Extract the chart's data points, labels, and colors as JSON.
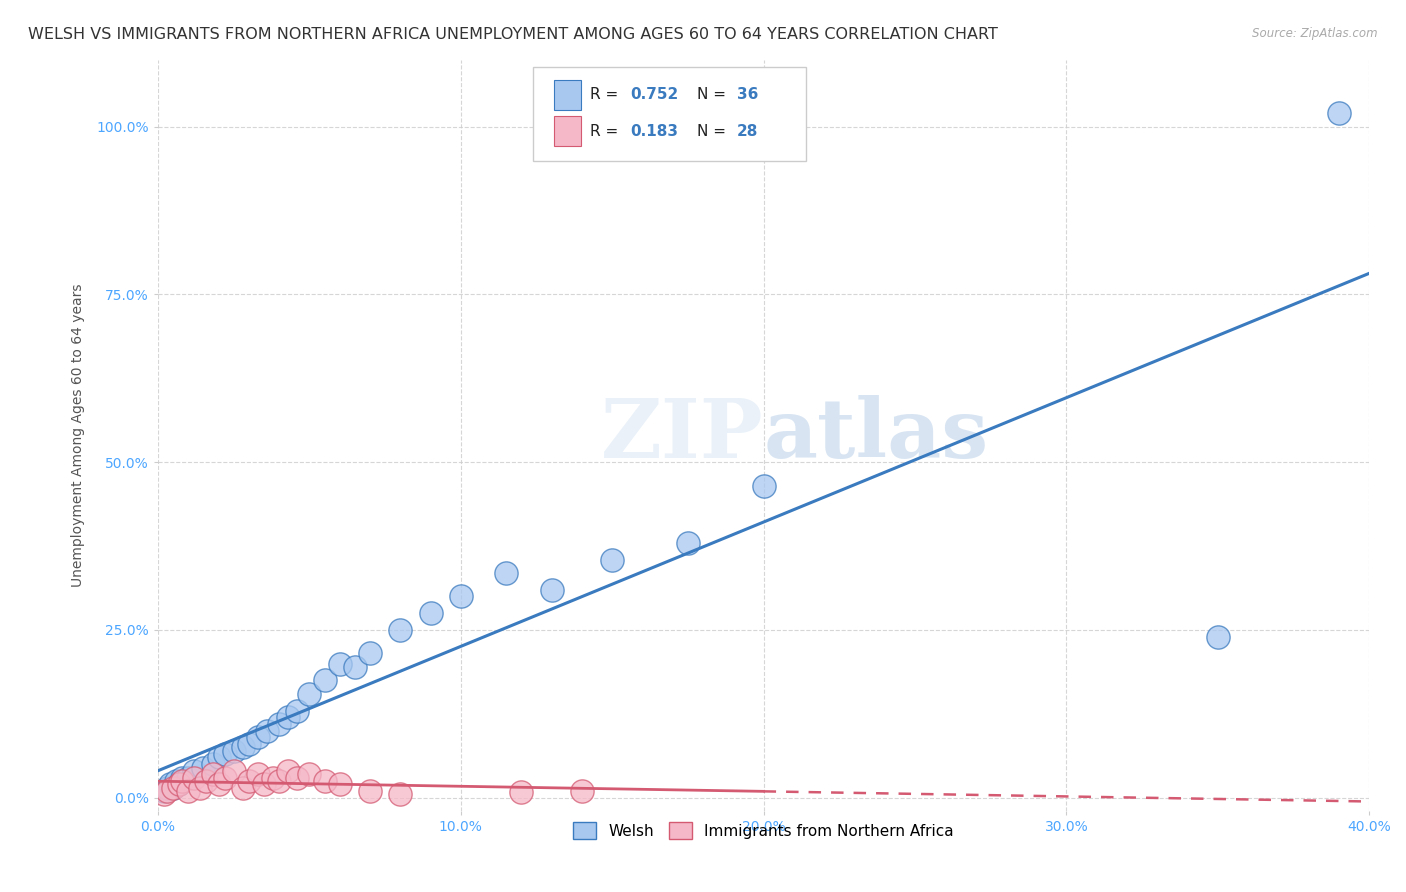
{
  "title": "WELSH VS IMMIGRANTS FROM NORTHERN AFRICA UNEMPLOYMENT AMONG AGES 60 TO 64 YEARS CORRELATION CHART",
  "source": "Source: ZipAtlas.com",
  "ylabel": "Unemployment Among Ages 60 to 64 years",
  "xlim": [
    0.0,
    0.4
  ],
  "ylim": [
    -0.02,
    1.1
  ],
  "xticks": [
    0.0,
    0.1,
    0.2,
    0.3,
    0.4
  ],
  "xtick_labels": [
    "0.0%",
    "10.0%",
    "20.0%",
    "30.0%",
    "40.0%"
  ],
  "yticks": [
    0.0,
    0.25,
    0.5,
    0.75,
    1.0
  ],
  "ytick_labels": [
    "0.0%",
    "25.0%",
    "50.0%",
    "75.0%",
    "100.0%"
  ],
  "welsh_R": 0.752,
  "welsh_N": 36,
  "immigrants_R": 0.183,
  "immigrants_N": 28,
  "welsh_color": "#a8c8f0",
  "welsh_line_color": "#3a7abf",
  "immigrants_color": "#f5b8c8",
  "immigrants_line_color": "#d45a72",
  "watermark_zip": "ZIP",
  "watermark_atlas": "atlas",
  "legend_labels": [
    "Welsh",
    "Immigrants from Northern Africa"
  ],
  "welsh_scatter_x": [
    0.002,
    0.003,
    0.004,
    0.005,
    0.006,
    0.007,
    0.008,
    0.01,
    0.012,
    0.015,
    0.018,
    0.02,
    0.022,
    0.025,
    0.028,
    0.03,
    0.033,
    0.036,
    0.04,
    0.043,
    0.046,
    0.05,
    0.055,
    0.06,
    0.065,
    0.07,
    0.08,
    0.09,
    0.1,
    0.115,
    0.13,
    0.15,
    0.175,
    0.2,
    0.35,
    0.39
  ],
  "welsh_scatter_y": [
    0.01,
    0.015,
    0.02,
    0.015,
    0.025,
    0.02,
    0.03,
    0.03,
    0.04,
    0.045,
    0.05,
    0.06,
    0.065,
    0.07,
    0.075,
    0.08,
    0.09,
    0.1,
    0.11,
    0.12,
    0.13,
    0.155,
    0.175,
    0.2,
    0.195,
    0.215,
    0.25,
    0.275,
    0.3,
    0.335,
    0.31,
    0.355,
    0.38,
    0.465,
    0.24,
    1.02
  ],
  "immigrants_scatter_x": [
    0.002,
    0.003,
    0.005,
    0.007,
    0.008,
    0.01,
    0.012,
    0.014,
    0.016,
    0.018,
    0.02,
    0.022,
    0.025,
    0.028,
    0.03,
    0.033,
    0.035,
    0.038,
    0.04,
    0.043,
    0.046,
    0.05,
    0.055,
    0.06,
    0.07,
    0.08,
    0.12,
    0.14
  ],
  "immigrants_scatter_y": [
    0.005,
    0.01,
    0.015,
    0.02,
    0.025,
    0.01,
    0.03,
    0.015,
    0.025,
    0.035,
    0.02,
    0.03,
    0.04,
    0.015,
    0.025,
    0.035,
    0.02,
    0.03,
    0.025,
    0.04,
    0.03,
    0.035,
    0.025,
    0.02,
    0.01,
    0.005,
    0.008,
    0.01
  ],
  "title_fontsize": 11.5,
  "axis_label_fontsize": 10,
  "tick_fontsize": 10,
  "background_color": "#ffffff",
  "grid_color": "#cccccc",
  "tick_label_color": "#4da6ff"
}
